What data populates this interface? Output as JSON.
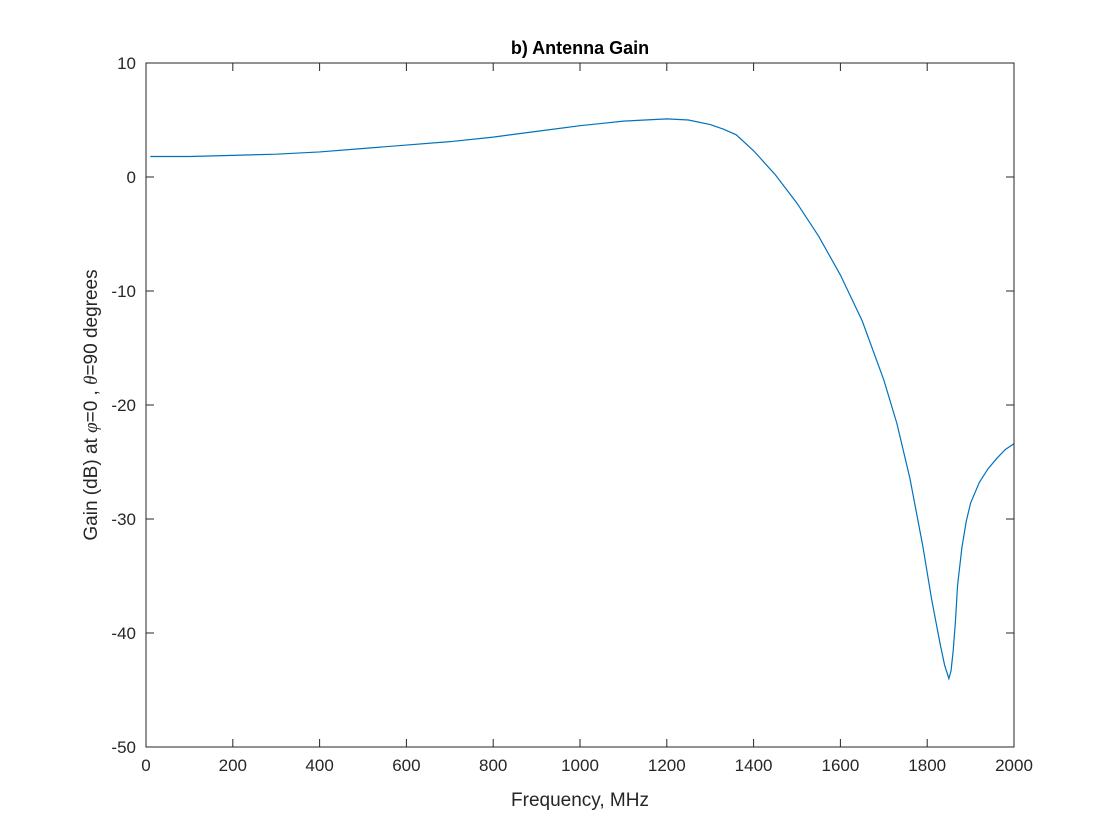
{
  "chart_data": {
    "type": "line",
    "title": "b) Antenna Gain",
    "xlabel": "Frequency, MHz",
    "ylabel": {
      "part1": "Gain (dB) at ",
      "phi": "φ",
      "part2": "=0 , ",
      "theta": "θ",
      "part3": "=90 degrees"
    },
    "xlim": [
      0,
      2000
    ],
    "ylim": [
      -50,
      10
    ],
    "xticks": [
      0,
      200,
      400,
      600,
      800,
      1000,
      1200,
      1400,
      1600,
      1800,
      2000
    ],
    "yticks": [
      10,
      0,
      -10,
      -20,
      -30,
      -40,
      -50
    ],
    "grid": false,
    "line_color": "#0072BD",
    "series": [
      {
        "x": [
          10,
          100,
          200,
          300,
          400,
          500,
          600,
          700,
          800,
          900,
          1000,
          1050,
          1100,
          1150,
          1200,
          1250,
          1300,
          1330,
          1360,
          1400,
          1450,
          1500,
          1550,
          1600,
          1650,
          1700,
          1730,
          1760,
          1790,
          1810,
          1830,
          1840,
          1850,
          1855,
          1860,
          1865,
          1870,
          1880,
          1890,
          1900,
          1920,
          1940,
          1960,
          1980,
          2000
        ],
        "values": [
          1.8,
          1.8,
          1.9,
          2.0,
          2.2,
          2.5,
          2.8,
          3.1,
          3.5,
          4.0,
          4.5,
          4.7,
          4.9,
          5.0,
          5.1,
          5.0,
          4.6,
          4.2,
          3.7,
          2.3,
          0.2,
          -2.3,
          -5.2,
          -8.6,
          -12.6,
          -17.8,
          -21.6,
          -26.4,
          -32.4,
          -37.0,
          -41.0,
          -42.8,
          -44.0,
          -43.3,
          -41.5,
          -39.0,
          -35.8,
          -32.5,
          -30.2,
          -28.6,
          -26.8,
          -25.6,
          -24.7,
          -23.9,
          -23.4
        ]
      }
    ]
  }
}
